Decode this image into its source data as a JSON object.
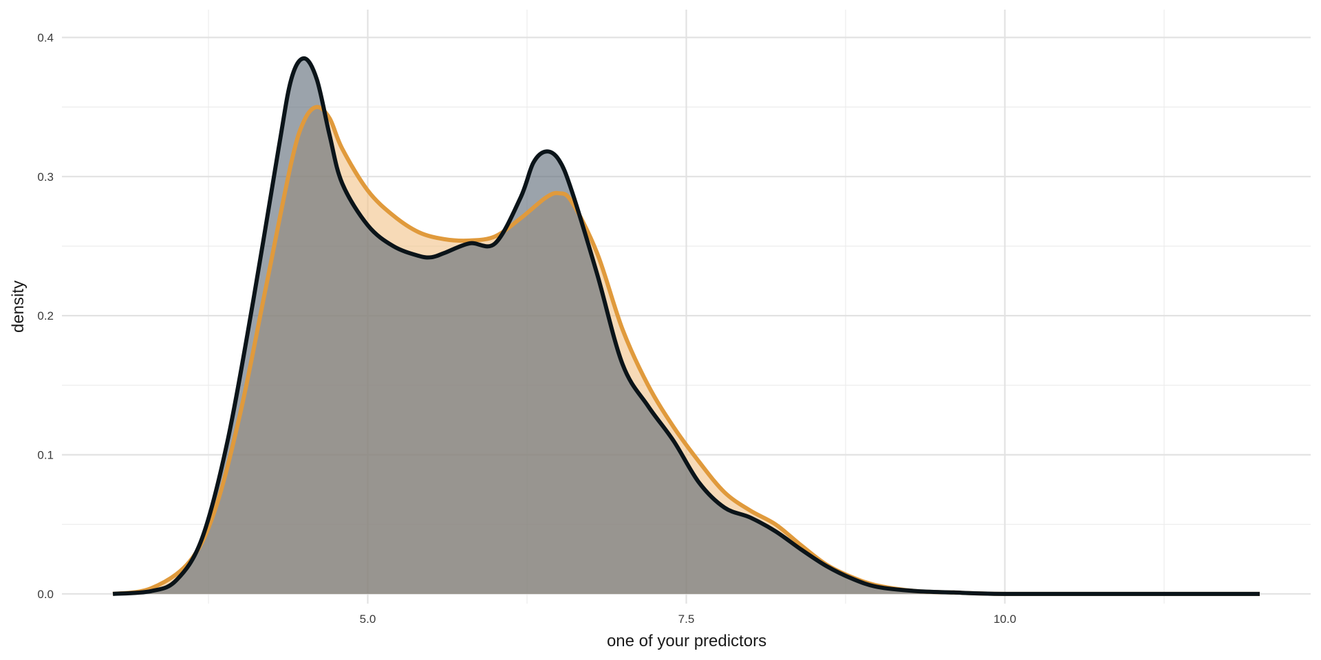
{
  "chart_data": {
    "type": "area",
    "title": "",
    "xlabel": "one of your predictors",
    "ylabel": "density",
    "xlim": [
      2.6,
      12.4
    ],
    "ylim": [
      -0.007,
      0.42
    ],
    "x_ticks": [
      5.0,
      7.5,
      10.0
    ],
    "x_tick_labels": [
      "5.0",
      "7.5",
      "10.0"
    ],
    "x_minor_ticks": [
      3.75,
      6.25,
      8.75,
      11.25
    ],
    "y_ticks": [
      0.0,
      0.1,
      0.2,
      0.3,
      0.4
    ],
    "y_tick_labels": [
      "0.0",
      "0.1",
      "0.2",
      "0.3",
      "0.4"
    ],
    "y_minor_ticks": [
      0.05,
      0.15,
      0.25,
      0.35
    ],
    "grid": true,
    "series": [
      {
        "color": "#E09A3C",
        "fill": "#F2C48A",
        "x": [
          3.0,
          3.3,
          3.6,
          3.8,
          4.0,
          4.2,
          4.4,
          4.5,
          4.6,
          4.7,
          4.8,
          5.0,
          5.2,
          5.4,
          5.6,
          5.8,
          6.0,
          6.2,
          6.4,
          6.5,
          6.6,
          6.8,
          7.0,
          7.2,
          7.4,
          7.6,
          7.8,
          8.0,
          8.2,
          8.4,
          8.6,
          8.8,
          9.0,
          9.3,
          9.6,
          10.0,
          11.0,
          12.0
        ],
        "values": [
          0.0,
          0.004,
          0.023,
          0.06,
          0.13,
          0.22,
          0.31,
          0.34,
          0.35,
          0.342,
          0.32,
          0.29,
          0.272,
          0.26,
          0.255,
          0.254,
          0.257,
          0.27,
          0.285,
          0.288,
          0.282,
          0.245,
          0.19,
          0.15,
          0.12,
          0.095,
          0.073,
          0.06,
          0.05,
          0.035,
          0.021,
          0.012,
          0.006,
          0.002,
          0.001,
          0.0,
          0.0,
          0.0
        ]
      },
      {
        "color": "#0B1419",
        "fill": "#5E6B78",
        "x": [
          3.0,
          3.3,
          3.5,
          3.7,
          3.9,
          4.1,
          4.3,
          4.4,
          4.5,
          4.6,
          4.7,
          4.8,
          5.0,
          5.2,
          5.4,
          5.5,
          5.6,
          5.8,
          6.0,
          6.2,
          6.3,
          6.4,
          6.5,
          6.6,
          6.8,
          7.0,
          7.2,
          7.4,
          7.6,
          7.8,
          8.0,
          8.2,
          8.4,
          8.6,
          8.8,
          9.0,
          9.3,
          9.6,
          10.0,
          11.0,
          12.0
        ],
        "values": [
          0.0,
          0.002,
          0.01,
          0.04,
          0.11,
          0.21,
          0.32,
          0.37,
          0.385,
          0.37,
          0.33,
          0.295,
          0.265,
          0.25,
          0.243,
          0.242,
          0.245,
          0.252,
          0.252,
          0.285,
          0.31,
          0.318,
          0.312,
          0.29,
          0.23,
          0.165,
          0.135,
          0.11,
          0.08,
          0.062,
          0.055,
          0.045,
          0.032,
          0.02,
          0.011,
          0.005,
          0.002,
          0.001,
          0.0,
          0.0,
          0.0
        ]
      }
    ]
  }
}
